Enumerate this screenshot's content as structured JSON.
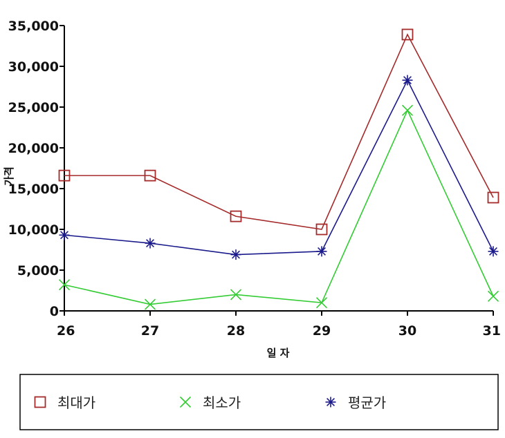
{
  "chart_data": {
    "type": "line",
    "title": "",
    "xlabel": "일 자",
    "ylabel": "가격",
    "x": [
      26,
      27,
      28,
      29,
      30,
      31
    ],
    "x_tick_labels": [
      "26",
      "27",
      "28",
      "29",
      "30",
      "31"
    ],
    "ylim": [
      0,
      35000
    ],
    "y_ticks": [
      0,
      5000,
      10000,
      15000,
      20000,
      25000,
      30000,
      35000
    ],
    "y_tick_labels": [
      "0",
      "5,000",
      "10,000",
      "15,000",
      "20,000",
      "25,000",
      "30,000",
      "35,000"
    ],
    "grid": false,
    "legend_position": "bottom",
    "series": [
      {
        "name": "최대가",
        "color": "#a52a2a",
        "marker": "square",
        "values": [
          16600,
          16600,
          11600,
          10000,
          33900,
          13900
        ]
      },
      {
        "name": "최소가",
        "color": "#33cc33",
        "marker": "x",
        "values": [
          3200,
          800,
          2000,
          1000,
          24600,
          1800
        ]
      },
      {
        "name": "평균가",
        "color": "#1a1a8c",
        "marker": "asterisk",
        "values": [
          9300,
          8300,
          6900,
          7300,
          28300,
          7300
        ]
      }
    ]
  }
}
